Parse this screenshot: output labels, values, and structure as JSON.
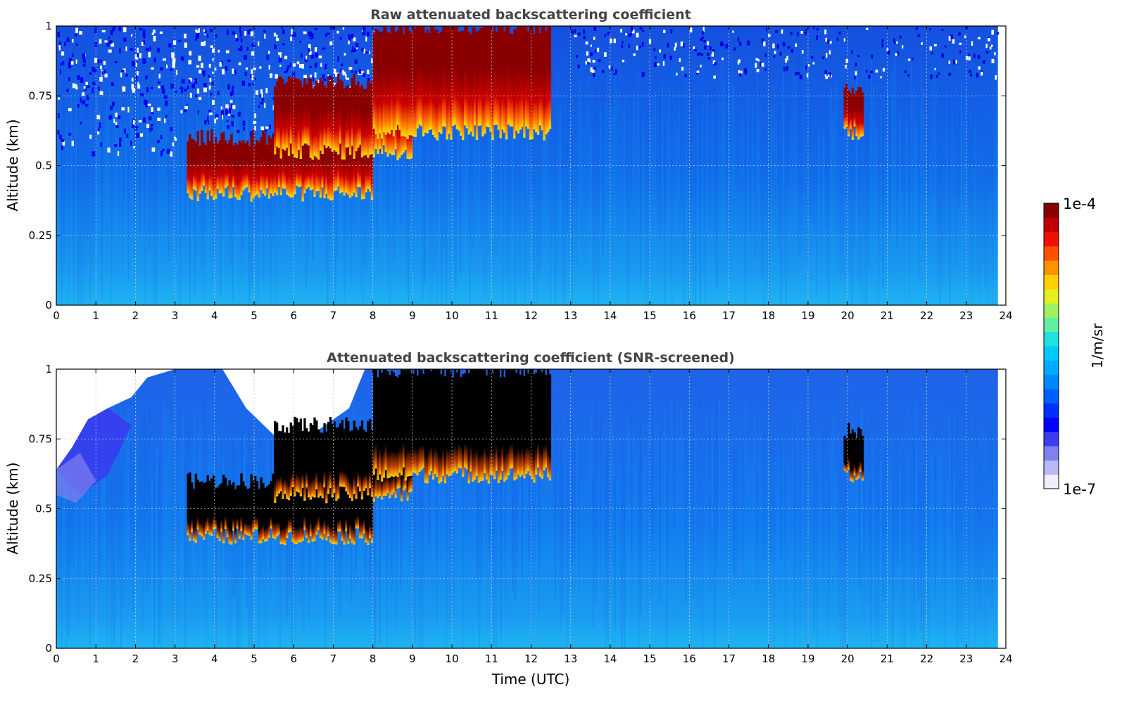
{
  "chart_data": [
    {
      "type": "heatmap",
      "title": "Raw attenuated backscattering coefficient",
      "xlabel": "",
      "ylabel": "Altitude (km)",
      "xlim": [
        0,
        24
      ],
      "ylim": [
        0,
        1
      ],
      "x_ticks": [
        "0",
        "1",
        "2",
        "3",
        "4",
        "5",
        "6",
        "7",
        "8",
        "9",
        "10",
        "11",
        "12",
        "13",
        "14",
        "15",
        "16",
        "17",
        "18",
        "19",
        "20",
        "21",
        "22",
        "23",
        "24"
      ],
      "y_ticks": [
        "0",
        "0.25",
        "0.5",
        "0.75",
        "1"
      ],
      "grid": true,
      "features": [
        {
          "start_h": 3.3,
          "end_h": 8.0,
          "base_km": 0.4,
          "top_km": 0.6,
          "intensity": "high"
        },
        {
          "start_h": 5.5,
          "end_h": 9.0,
          "base_km": 0.55,
          "top_km": 0.8,
          "intensity": "high"
        },
        {
          "start_h": 8.0,
          "end_h": 12.5,
          "base_km": 0.62,
          "top_km": 1.0,
          "intensity": "high"
        },
        {
          "start_h": 19.9,
          "end_h": 20.4,
          "base_km": 0.62,
          "top_km": 0.78,
          "intensity": "high"
        }
      ]
    },
    {
      "type": "heatmap",
      "title": "Attenuated backscattering coefficient (SNR-screened)",
      "xlabel": "Time (UTC)",
      "ylabel": "Altitude (km)",
      "xlim": [
        0,
        24
      ],
      "ylim": [
        0,
        1
      ],
      "x_ticks": [
        "0",
        "1",
        "2",
        "3",
        "4",
        "5",
        "6",
        "7",
        "8",
        "9",
        "10",
        "11",
        "12",
        "13",
        "14",
        "15",
        "16",
        "17",
        "18",
        "19",
        "20",
        "21",
        "22",
        "23",
        "24"
      ],
      "y_ticks": [
        "0",
        "0.25",
        "0.5",
        "0.75",
        "1"
      ],
      "grid": true,
      "features": [
        {
          "start_h": 3.3,
          "end_h": 8.0,
          "base_km": 0.4,
          "top_km": 0.6,
          "intensity": "saturated"
        },
        {
          "start_h": 5.5,
          "end_h": 9.0,
          "base_km": 0.55,
          "top_km": 0.8,
          "intensity": "saturated"
        },
        {
          "start_h": 8.0,
          "end_h": 12.5,
          "base_km": 0.62,
          "top_km": 1.0,
          "intensity": "saturated"
        },
        {
          "start_h": 19.9,
          "end_h": 20.4,
          "base_km": 0.62,
          "top_km": 0.78,
          "intensity": "saturated"
        }
      ]
    }
  ],
  "colorbar": {
    "label": "1/m/sr",
    "min_label": "1e-7",
    "max_label": "1e-4",
    "scale": "log",
    "colors": [
      "#eeeeff",
      "#b8b8f4",
      "#8080ee",
      "#3c3cf0",
      "#0000ff",
      "#0030ff",
      "#0060ff",
      "#0088ff",
      "#00aaff",
      "#00c8f8",
      "#20e0e0",
      "#60f0a0",
      "#a0f060",
      "#e0f020",
      "#ffd000",
      "#ff9000",
      "#ff5000",
      "#ee1000",
      "#c00000",
      "#880000"
    ]
  }
}
